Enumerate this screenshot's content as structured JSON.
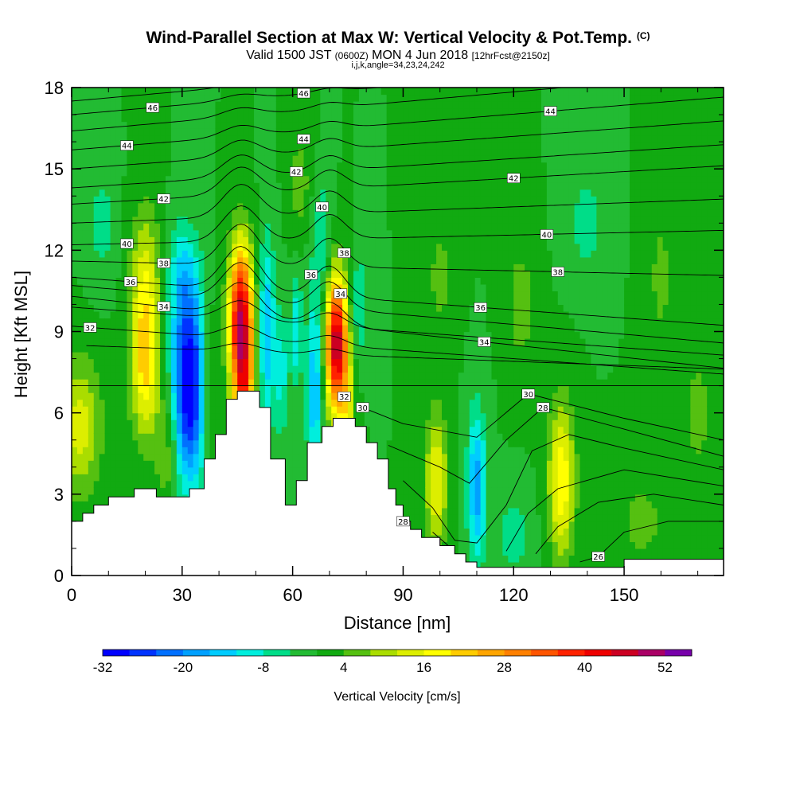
{
  "header": {
    "title": "Wind-Parallel Section at Max W: Vertical Velocity & Pot.Temp.",
    "title_unit": "(C)",
    "valid_label": "Valid 1500 JST",
    "valid_utc": "(0600Z)",
    "valid_date": "MON 4 Jun 2018",
    "forecast": "[12hrFcst@2150z]",
    "grid_info": "i,j,k,angle=34,23,24,242"
  },
  "chart_data": {
    "type": "heatmap",
    "xlabel": "Distance [nm]",
    "ylabel": "Height [Kft MSL]",
    "xlim": [
      0,
      177
    ],
    "ylim": [
      0,
      18
    ],
    "x_ticks": [
      0,
      30,
      60,
      90,
      120,
      150
    ],
    "y_ticks": [
      0,
      3,
      6,
      9,
      12,
      15,
      18
    ],
    "colorbar": {
      "label": "Vertical Velocity [cm/s]",
      "tick_labels": [
        "-32",
        "-20",
        "-8",
        "4",
        "16",
        "28",
        "40",
        "52"
      ],
      "min": -32,
      "max": 58,
      "step": 4,
      "colors": [
        "#0000ff",
        "#0033ff",
        "#0070ff",
        "#00a0ff",
        "#00ccff",
        "#00eedd",
        "#00dd88",
        "#22bb33",
        "#11aa11",
        "#55c011",
        "#aadd00",
        "#ddee00",
        "#ffff00",
        "#ffcc00",
        "#ffa500",
        "#ff8000",
        "#ff5500",
        "#ff2200",
        "#ee0000",
        "#cc0022",
        "#aa0066",
        "#7700aa"
      ]
    },
    "terrain": [
      [
        0,
        2
      ],
      [
        3,
        2
      ],
      [
        3,
        2.3
      ],
      [
        6,
        2.3
      ],
      [
        6,
        2.6
      ],
      [
        10,
        2.6
      ],
      [
        10,
        2.9
      ],
      [
        17,
        2.9
      ],
      [
        17,
        3.2
      ],
      [
        23,
        3.2
      ],
      [
        23,
        2.9
      ],
      [
        32,
        2.9
      ],
      [
        32,
        3.2
      ],
      [
        36,
        3.2
      ],
      [
        36,
        4.3
      ],
      [
        39,
        4.3
      ],
      [
        39,
        5.2
      ],
      [
        42,
        5.2
      ],
      [
        42,
        6.5
      ],
      [
        45,
        6.5
      ],
      [
        45,
        6.8
      ],
      [
        51,
        6.8
      ],
      [
        51,
        6.2
      ],
      [
        54,
        6.2
      ],
      [
        54,
        4.3
      ],
      [
        58,
        4.3
      ],
      [
        58,
        2.6
      ],
      [
        61,
        2.6
      ],
      [
        61,
        3.5
      ],
      [
        64,
        3.5
      ],
      [
        64,
        4.9
      ],
      [
        68,
        4.9
      ],
      [
        68,
        5.5
      ],
      [
        71,
        5.5
      ],
      [
        71,
        5.8
      ],
      [
        77,
        5.8
      ],
      [
        77,
        5.5
      ],
      [
        80,
        5.5
      ],
      [
        80,
        4.9
      ],
      [
        83,
        4.9
      ],
      [
        83,
        4.3
      ],
      [
        86,
        4.3
      ],
      [
        86,
        3.2
      ],
      [
        88,
        3.2
      ],
      [
        88,
        2.6
      ],
      [
        90,
        2.6
      ],
      [
        90,
        2
      ],
      [
        92,
        2
      ],
      [
        92,
        1.7
      ],
      [
        95,
        1.7
      ],
      [
        95,
        1.4
      ],
      [
        100,
        1.4
      ],
      [
        100,
        1.1
      ],
      [
        104,
        1.1
      ],
      [
        104,
        0.8
      ],
      [
        107,
        0.8
      ],
      [
        107,
        0.5
      ],
      [
        110,
        0.5
      ],
      [
        110,
        0.3
      ],
      [
        150,
        0.3
      ],
      [
        150,
        0.6
      ],
      [
        177,
        0.6
      ]
    ],
    "wbg": 0,
    "wcells": [
      {
        "x": 2,
        "z": 5.5,
        "sx": 6,
        "sz": 2.5,
        "a": 14
      },
      {
        "x": 20,
        "z": 8,
        "sx": 4,
        "sz": 2.8,
        "a": 22
      },
      {
        "x": 20,
        "z": 11.5,
        "sx": 4,
        "sz": 2.5,
        "a": 10
      },
      {
        "x": 26,
        "z": 4.5,
        "sx": 3,
        "sz": 2,
        "a": 8
      },
      {
        "x": 32,
        "z": 7,
        "sx": 4.5,
        "sz": 3.5,
        "a": -34
      },
      {
        "x": 30,
        "z": 11,
        "sx": 4,
        "sz": 2,
        "a": -10
      },
      {
        "x": 37,
        "z": 7,
        "sx": 2.5,
        "sz": 3,
        "a": 8
      },
      {
        "x": 46,
        "z": 9.3,
        "sx": 3.2,
        "sz": 2.8,
        "a": 50
      },
      {
        "x": 47,
        "z": 6.8,
        "sx": 2.5,
        "sz": 1.5,
        "a": 18
      },
      {
        "x": 53,
        "z": 9,
        "sx": 2.2,
        "sz": 3.5,
        "a": -16
      },
      {
        "x": 57,
        "z": 7.5,
        "sx": 1.8,
        "sz": 2.3,
        "a": -10
      },
      {
        "x": 61,
        "z": 9,
        "sx": 1.5,
        "sz": 2,
        "a": -12
      },
      {
        "x": 66,
        "z": 7,
        "sx": 2.2,
        "sz": 3.5,
        "a": -16
      },
      {
        "x": 72,
        "z": 8.5,
        "sx": 3,
        "sz": 2.5,
        "a": 48
      },
      {
        "x": 75,
        "z": 5.5,
        "sx": 2,
        "sz": 2.2,
        "a": 12
      },
      {
        "x": 78,
        "z": 10,
        "sx": 2.5,
        "sz": 2,
        "a": -8
      },
      {
        "x": 68,
        "z": 12.5,
        "sx": 2.5,
        "sz": 2,
        "a": -8
      },
      {
        "x": 62,
        "z": 14.5,
        "sx": 3,
        "sz": 2,
        "a": 6
      },
      {
        "x": 99,
        "z": 3.5,
        "sx": 3,
        "sz": 2.5,
        "a": 17
      },
      {
        "x": 110,
        "z": 3.3,
        "sx": 2.5,
        "sz": 2.8,
        "a": -18
      },
      {
        "x": 133,
        "z": 3.5,
        "sx": 3.5,
        "sz": 2.8,
        "a": 20
      },
      {
        "x": 120,
        "z": 1.5,
        "sx": 5,
        "sz": 1.5,
        "a": -6
      },
      {
        "x": 155,
        "z": 2,
        "sx": 8,
        "sz": 2,
        "a": 5
      },
      {
        "x": 122,
        "z": 10,
        "sx": 4,
        "sz": 2.5,
        "a": 6
      },
      {
        "x": 100,
        "z": 11,
        "sx": 4,
        "sz": 2.5,
        "a": 5
      },
      {
        "x": 170,
        "z": 6,
        "sx": 5,
        "sz": 3,
        "a": 5
      },
      {
        "x": 140,
        "z": 13,
        "sx": 5,
        "sz": 2,
        "a": -6
      },
      {
        "x": 8,
        "z": 13,
        "sx": 4,
        "sz": 2,
        "a": -6
      },
      {
        "x": 160,
        "z": 11,
        "sx": 4,
        "sz": 3,
        "a": 5
      }
    ],
    "isentropes": [
      {
        "base": 7,
        "slope": 0,
        "peak": 0,
        "lbl": [],
        "startX": 0
      },
      {
        "base": 8.5,
        "slope": -0.005,
        "peak": 0.3,
        "lbl": [],
        "startX": 4
      },
      {
        "base": 9.2,
        "slope": -0.01,
        "peak": 0.5,
        "lbl": [
          [
            5,
            "32"
          ]
        ],
        "startX": 0
      },
      {
        "base": 9.9,
        "slope": -0.01,
        "peak": 0.7,
        "lbl": [],
        "startX": 0
      },
      {
        "base": 10.3,
        "slope": -0.015,
        "peak": 1.2,
        "lbl": [
          [
            25,
            "34"
          ],
          [
            112,
            "34"
          ]
        ],
        "startX": 0
      },
      {
        "base": 10.7,
        "slope": -0.012,
        "peak": 1.4,
        "lbl": [],
        "startX": 0
      },
      {
        "base": 11,
        "slope": -0.01,
        "peak": 1.6,
        "lbl": [
          [
            16,
            "36"
          ],
          [
            111,
            "36"
          ]
        ],
        "startX": 0
      },
      {
        "base": 11.6,
        "slope": -0.003,
        "peak": 1.5,
        "lbl": [
          [
            25,
            "38"
          ],
          [
            132,
            "38"
          ]
        ],
        "startX": 0
      },
      {
        "base": 12.2,
        "slope": 0.003,
        "peak": 1.3,
        "lbl": [
          [
            15,
            "40"
          ],
          [
            129,
            "40"
          ]
        ],
        "startX": 0
      },
      {
        "base": 13,
        "slope": 0.005,
        "peak": 1.2,
        "lbl": [],
        "startX": 0
      },
      {
        "base": 13.7,
        "slope": 0.008,
        "peak": 1,
        "lbl": [
          [
            25,
            "42"
          ],
          [
            120,
            "42"
          ]
        ],
        "startX": 0
      },
      {
        "base": 14.3,
        "slope": 0.009,
        "peak": 0.8,
        "lbl": [],
        "startX": 0
      },
      {
        "base": 15,
        "slope": 0.01,
        "peak": 0.6,
        "lbl": [],
        "startX": 0
      },
      {
        "base": 15.7,
        "slope": 0.011,
        "peak": 0.4,
        "lbl": [
          [
            15,
            "44"
          ],
          [
            130,
            "44"
          ]
        ],
        "startX": 0
      },
      {
        "base": 16.4,
        "slope": 0.012,
        "peak": 0.3,
        "lbl": [],
        "startX": 0
      },
      {
        "base": 17,
        "slope": 0.012,
        "peak": 0.2,
        "lbl": [
          [
            22,
            "46"
          ],
          [
            63,
            "46"
          ]
        ],
        "startX": 0
      },
      {
        "base": 17.5,
        "slope": 0.012,
        "peak": 0.1,
        "lbl": [],
        "startX": 0
      }
    ],
    "extra_labels": [
      [
        63,
        16.1,
        "44"
      ],
      [
        61,
        14.9,
        "42"
      ],
      [
        68,
        13.6,
        "40"
      ],
      [
        74,
        11.9,
        "38"
      ],
      [
        65,
        11.1,
        "36"
      ],
      [
        73,
        10.4,
        "34"
      ],
      [
        74,
        6.6,
        "32"
      ],
      [
        79,
        6.2,
        "30"
      ],
      [
        124,
        6.7,
        "30"
      ],
      [
        128,
        6.2,
        "28"
      ],
      [
        90,
        2.0,
        "28"
      ],
      [
        143,
        0.7,
        "26"
      ]
    ],
    "lower_isentropes": [
      [
        [
          79,
          6.2
        ],
        [
          90,
          5.6
        ],
        [
          110,
          5.1
        ],
        [
          124,
          6.7
        ],
        [
          150,
          5.8
        ],
        [
          177,
          5.0
        ]
      ],
      [
        [
          86,
          4.8
        ],
        [
          100,
          4.0
        ],
        [
          108,
          3.4
        ],
        [
          118,
          5.0
        ],
        [
          128,
          6.2
        ],
        [
          150,
          5.4
        ],
        [
          177,
          4.4
        ]
      ],
      [
        [
          90,
          3.5
        ],
        [
          98,
          2.5
        ],
        [
          104,
          1.3
        ],
        [
          110,
          1.2
        ],
        [
          118,
          2.6
        ],
        [
          125,
          4.6
        ],
        [
          135,
          5.2
        ],
        [
          150,
          4.7
        ],
        [
          177,
          3.9
        ]
      ],
      [
        [
          98,
          1.6
        ],
        [
          104,
          0.9
        ]
      ],
      [
        [
          118,
          0.9
        ],
        [
          124,
          2.3
        ],
        [
          132,
          3.2
        ],
        [
          150,
          3.9
        ],
        [
          177,
          3.3
        ]
      ],
      [
        [
          126,
          0.8
        ],
        [
          132,
          1.8
        ],
        [
          143,
          2.7
        ],
        [
          158,
          3.0
        ],
        [
          177,
          2.6
        ]
      ],
      [
        [
          138,
          0.5
        ],
        [
          143,
          0.7
        ],
        [
          150,
          1.6
        ],
        [
          162,
          2.0
        ],
        [
          177,
          2.0
        ]
      ]
    ]
  }
}
